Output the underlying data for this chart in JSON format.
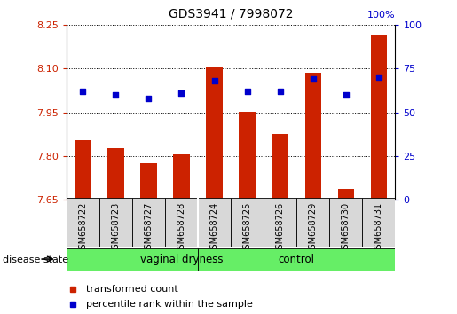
{
  "title": "GDS3941 / 7998072",
  "samples": [
    "GSM658722",
    "GSM658723",
    "GSM658727",
    "GSM658728",
    "GSM658724",
    "GSM658725",
    "GSM658726",
    "GSM658729",
    "GSM658730",
    "GSM658731"
  ],
  "transformed_count": [
    7.855,
    7.825,
    7.775,
    7.805,
    8.103,
    7.953,
    7.875,
    8.085,
    7.685,
    8.215
  ],
  "percentile_rank": [
    62,
    60,
    58,
    61,
    68,
    62,
    62,
    69,
    60,
    70
  ],
  "ylim": [
    7.65,
    8.25
  ],
  "yticks_left": [
    7.65,
    7.8,
    7.95,
    8.1,
    8.25
  ],
  "yticks_right": [
    0,
    25,
    50,
    75,
    100
  ],
  "bar_color": "#cc2200",
  "dot_color": "#0000cc",
  "bar_bottom": 7.65,
  "group_labels": [
    "vaginal dryness",
    "control"
  ],
  "group_split": 4,
  "green_color": "#66ee66",
  "disease_state_label": "disease state",
  "legend_bar_label": "transformed count",
  "legend_dot_label": "percentile rank within the sample",
  "background_color": "#ffffff",
  "xtick_bg_color": "#d8d8d8",
  "right_axis_label": "100%"
}
